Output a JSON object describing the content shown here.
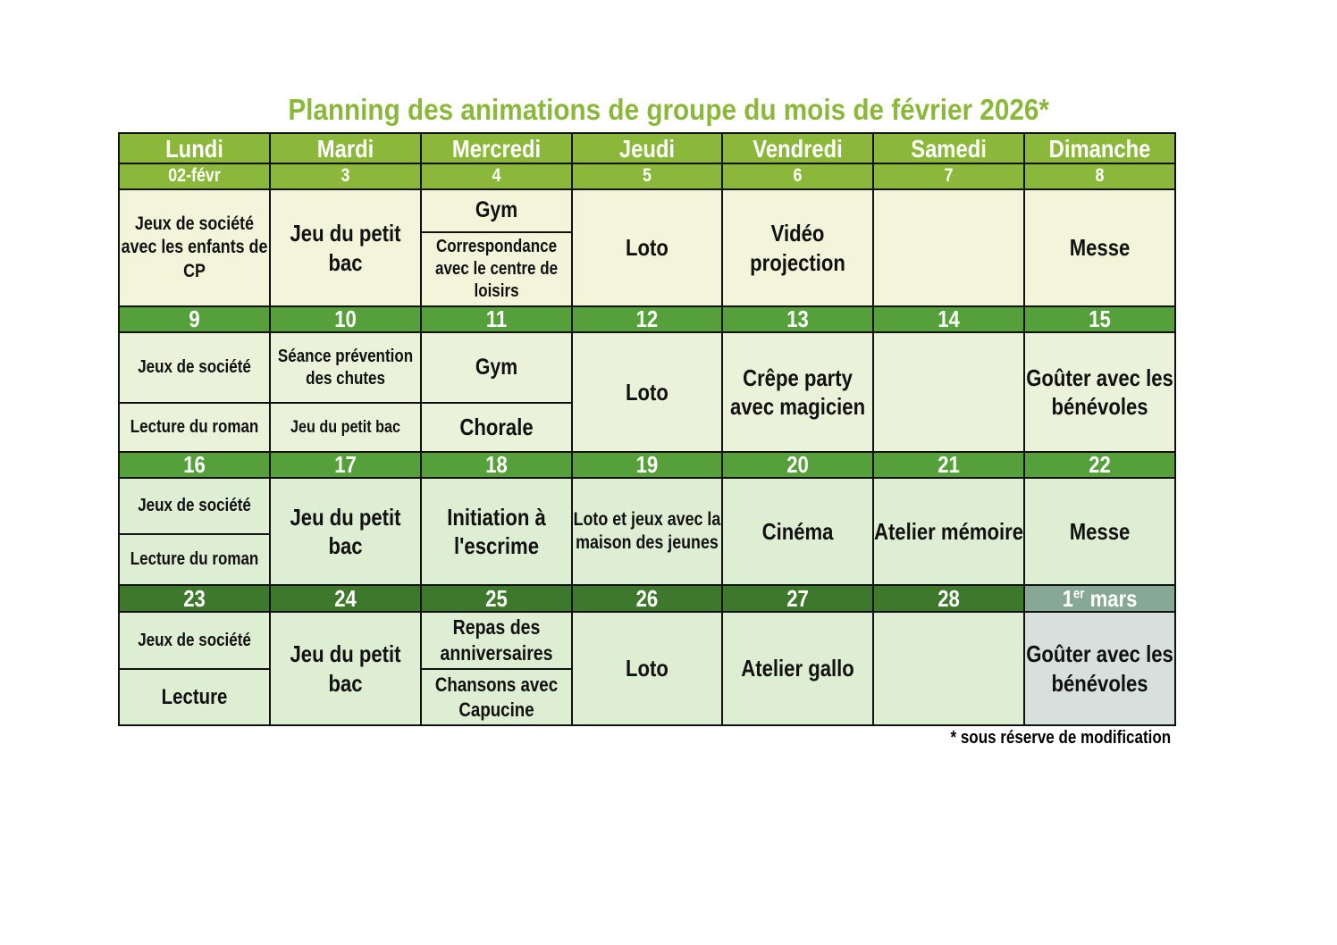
{
  "title": "Planning des animations de groupe du mois de février 2026*",
  "days": [
    "Lundi",
    "Mardi",
    "Mercredi",
    "Jeudi",
    "Vendredi",
    "Samedi",
    "Dimanche"
  ],
  "weeks": [
    {
      "dates": [
        "02-févr",
        "3",
        "4",
        "5",
        "6",
        "7",
        "8"
      ],
      "cells": [
        [
          "Jeux de société avec les enfants de CP"
        ],
        [
          "Jeu du petit bac"
        ],
        [
          "Gym",
          "Correspondance avec le centre de loisirs"
        ],
        [
          "Loto"
        ],
        [
          "Vidéo projection"
        ],
        [],
        [
          "Messe"
        ]
      ]
    },
    {
      "dates": [
        "9",
        "10",
        "11",
        "12",
        "13",
        "14",
        "15"
      ],
      "cells": [
        [
          "Jeux de société",
          "Lecture du roman"
        ],
        [
          "Séance prévention des chutes",
          "Jeu du petit bac"
        ],
        [
          "Gym",
          "Chorale"
        ],
        [
          "Loto"
        ],
        [
          "Crêpe party avec magicien"
        ],
        [],
        [
          "Goûter avec les bénévoles"
        ]
      ]
    },
    {
      "dates": [
        "16",
        "17",
        "18",
        "19",
        "20",
        "21",
        "22"
      ],
      "cells": [
        [
          "Jeux de société",
          "Lecture du roman"
        ],
        [
          "Jeu du petit bac"
        ],
        [
          "Initiation à l'escrime"
        ],
        [
          "Loto et jeux avec la maison des jeunes"
        ],
        [
          "Cinéma"
        ],
        [
          "Atelier mémoire"
        ],
        [
          "Messe"
        ]
      ]
    },
    {
      "dates": [
        "23",
        "24",
        "25",
        "26",
        "27",
        "28",
        "1"
      ],
      "cells": [
        [
          "Jeux de société",
          "Lecture"
        ],
        [
          "Jeu du petit bac"
        ],
        [
          "Repas des anniversaires",
          "Chansons avec Capucine"
        ],
        [
          "Loto"
        ],
        [
          "Atelier gallo"
        ],
        [],
        [
          "Goûter avec les bénévoles"
        ]
      ]
    }
  ],
  "last_date_sup": "er",
  "last_date_suffix": " mars",
  "footnote": "* sous réserve de modification",
  "colors": {
    "title": "#8bb83a",
    "header": "#8bb83a",
    "week_date_bg": [
      "#8bb83a",
      "#55a03a",
      "#55a03a",
      "#3e782c"
    ],
    "week_body_bg": [
      "#f2f5d9",
      "#ecf2da",
      "#ddeed3",
      "#ddeed3"
    ],
    "next_month_date_bg": "#86a894",
    "next_month_body_bg": "#d7e0dc"
  }
}
